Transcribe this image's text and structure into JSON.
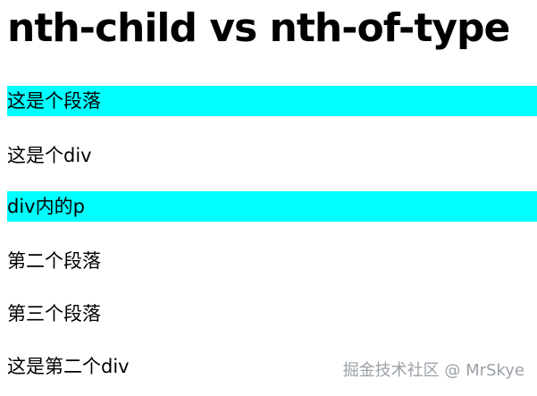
{
  "page": {
    "title": "nth-child vs nth-of-type"
  },
  "items": [
    {
      "text": "这是个段落",
      "highlighted": true
    },
    {
      "text": "这是个div",
      "highlighted": false
    },
    {
      "text": "div内的p",
      "highlighted": true
    },
    {
      "text": "第二个段落",
      "highlighted": false
    },
    {
      "text": "第三个段落",
      "highlighted": false
    },
    {
      "text": "这是第二个div",
      "highlighted": false
    }
  ],
  "watermark": "掘金技术社区 @ MrSkye",
  "colors": {
    "highlight": "#00ffff",
    "text": "#000000",
    "watermark": "#9aa0a6",
    "background": "#ffffff"
  }
}
